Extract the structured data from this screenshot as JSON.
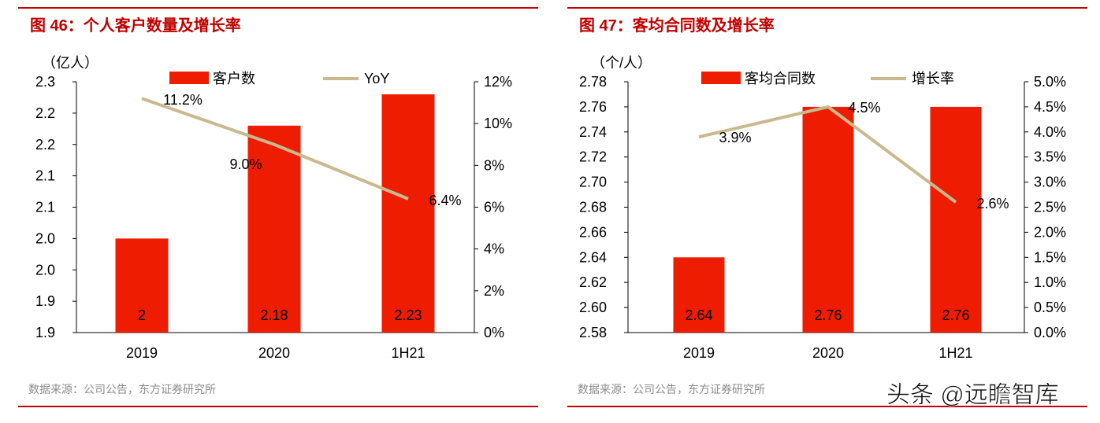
{
  "watermark": "头条 @远瞻智库",
  "colors": {
    "bar": "#ee1c00",
    "line": "#c8b98f",
    "title": "#c00000",
    "rule": "#c00000"
  },
  "chart_data": [
    {
      "type": "bar+line",
      "title": "图 46：个人客户数量及增长率",
      "source": "数据来源：公司公告，东方证券研究所",
      "unit_label": "（亿人）",
      "categories": [
        "2019",
        "2020",
        "1H21"
      ],
      "series": [
        {
          "name": "客户数",
          "type": "bar",
          "axis": "left",
          "values": [
            2.0,
            2.18,
            2.23
          ],
          "data_labels": [
            "2",
            "2.18",
            "2.23"
          ]
        },
        {
          "name": "YoY",
          "type": "line",
          "axis": "right",
          "values": [
            11.2,
            9.0,
            6.4
          ],
          "data_labels": [
            "11.2%",
            "9.0%",
            "6.4%"
          ]
        }
      ],
      "y_left": {
        "ylim": [
          1.85,
          2.25
        ],
        "ticks": [
          1.85,
          1.9,
          1.95,
          2.0,
          2.05,
          2.1,
          2.15,
          2.2,
          2.25
        ],
        "tick_labels": [
          "1.9",
          "1.9",
          "2.0",
          "2.0",
          "2.1",
          "2.1",
          "2.2",
          "2.2",
          "2.3"
        ]
      },
      "y_right": {
        "ylim": [
          0,
          12
        ],
        "ticks": [
          0,
          2,
          4,
          6,
          8,
          10,
          12
        ],
        "tick_labels": [
          "0%",
          "2%",
          "4%",
          "6%",
          "8%",
          "10%",
          "12%"
        ]
      },
      "legend": "top",
      "grid": false
    },
    {
      "type": "bar+line",
      "title": "图 47：客均合同数及增长率",
      "source": "数据来源：公司公告，东方证券研究所",
      "unit_label": "（个/人）",
      "categories": [
        "2019",
        "2020",
        "1H21"
      ],
      "series": [
        {
          "name": "客均合同数",
          "type": "bar",
          "axis": "left",
          "values": [
            2.64,
            2.76,
            2.76
          ],
          "data_labels": [
            "2.64",
            "2.76",
            "2.76"
          ]
        },
        {
          "name": "增长率",
          "type": "line",
          "axis": "right",
          "values": [
            3.9,
            4.5,
            2.6
          ],
          "data_labels": [
            "3.9%",
            "4.5%",
            "2.6%"
          ]
        }
      ],
      "y_left": {
        "ylim": [
          2.58,
          2.78
        ],
        "ticks": [
          2.58,
          2.6,
          2.62,
          2.64,
          2.66,
          2.68,
          2.7,
          2.72,
          2.74,
          2.76,
          2.78
        ],
        "tick_labels": [
          "2.58",
          "2.60",
          "2.62",
          "2.64",
          "2.66",
          "2.68",
          "2.70",
          "2.72",
          "2.74",
          "2.76",
          "2.78"
        ]
      },
      "y_right": {
        "ylim": [
          0,
          5
        ],
        "ticks": [
          0,
          0.5,
          1,
          1.5,
          2,
          2.5,
          3,
          3.5,
          4,
          4.5,
          5
        ],
        "tick_labels": [
          "0.0%",
          "0.5%",
          "1.0%",
          "1.5%",
          "2.0%",
          "2.5%",
          "3.0%",
          "3.5%",
          "4.0%",
          "4.5%",
          "5.0%"
        ]
      },
      "legend": "top",
      "grid": false
    }
  ]
}
